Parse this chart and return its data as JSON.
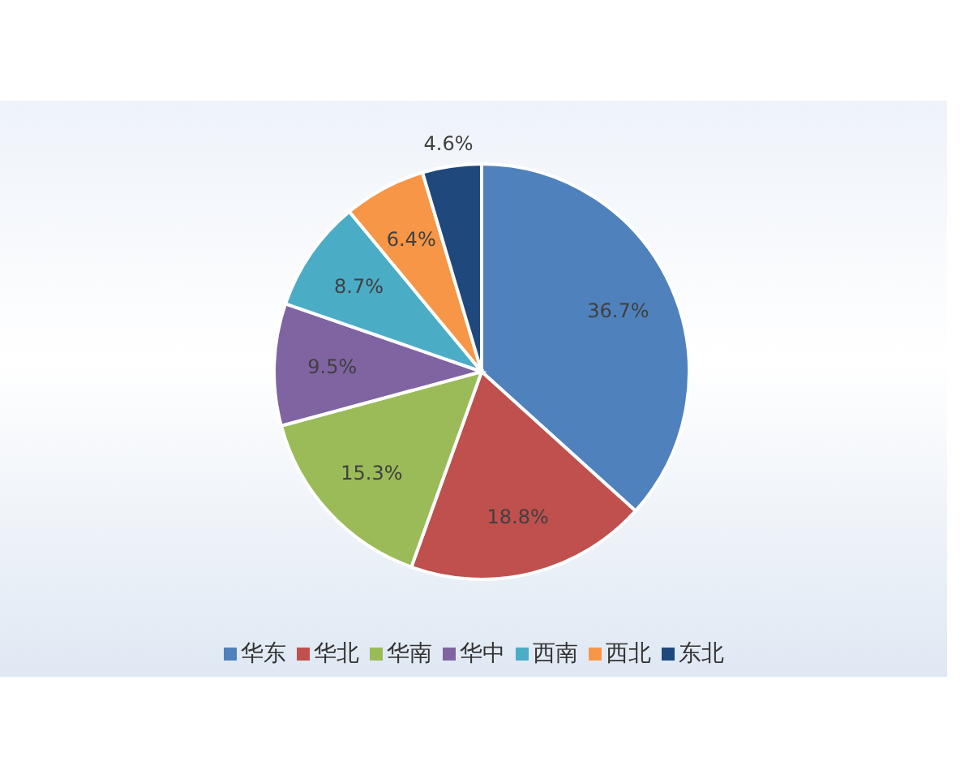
{
  "chart_data": {
    "type": "pie",
    "categories": [
      "华东",
      "华北",
      "华南",
      "华中",
      "西南",
      "西北",
      "东北"
    ],
    "values": [
      36.7,
      18.8,
      15.3,
      9.5,
      8.7,
      6.4,
      4.6
    ],
    "colors": [
      "#4f81bd",
      "#c0504d",
      "#9bbb59",
      "#8064a2",
      "#4bacc6",
      "#f79646",
      "#1f497d"
    ],
    "value_labels": [
      "36.7%",
      "18.8%",
      "15.3%",
      "9.5%",
      "8.7%",
      "6.4%",
      "4.6%"
    ],
    "legend": "bottom"
  }
}
